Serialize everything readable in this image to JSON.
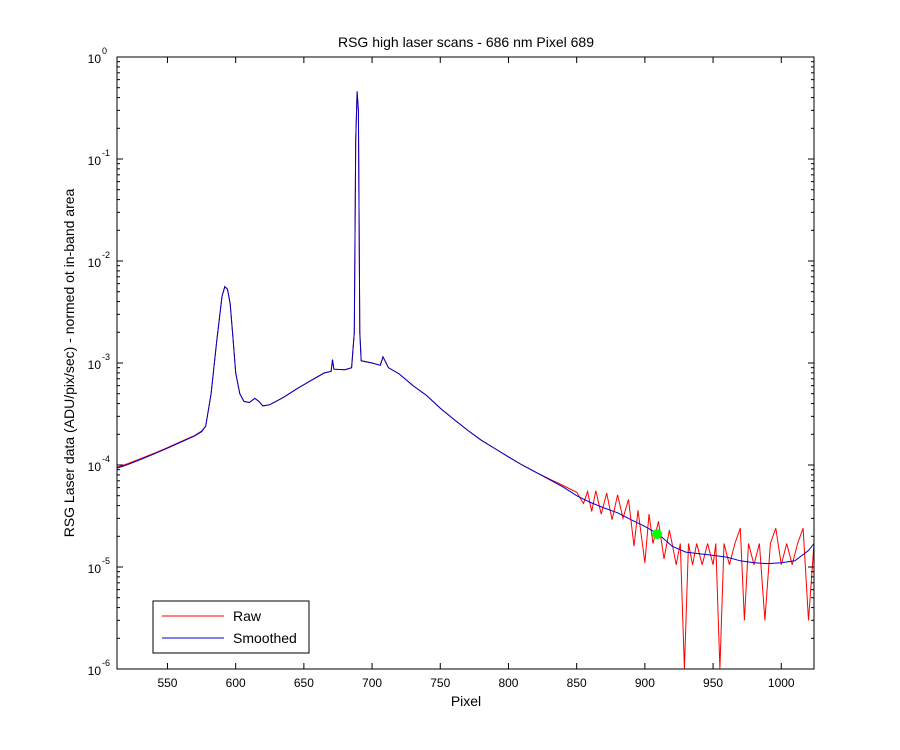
{
  "chart_data": {
    "type": "line",
    "title": "RSG high laser scans  - 686 nm    Pixel 689",
    "xlabel": "Pixel",
    "ylabel": "RSG Laser data (ADU/pix/sec) - normed ot in-band area",
    "xlim": [
      513,
      1024
    ],
    "ylim": [
      1e-06,
      1
    ],
    "yscale": "log",
    "grid": false,
    "legend_position": "bottom-left",
    "x_ticks": [
      550,
      600,
      650,
      700,
      750,
      800,
      850,
      900,
      950,
      1000
    ],
    "y_ticks": [
      {
        "value": 1e-06,
        "base": "10",
        "exp": "-6"
      },
      {
        "value": 1e-05,
        "base": "10",
        "exp": "-5"
      },
      {
        "value": 0.0001,
        "base": "10",
        "exp": "-4"
      },
      {
        "value": 0.001,
        "base": "10",
        "exp": "-3"
      },
      {
        "value": 0.01,
        "base": "10",
        "exp": "-2"
      },
      {
        "value": 0.1,
        "base": "10",
        "exp": "-1"
      },
      {
        "value": 1,
        "base": "10",
        "exp": "0"
      }
    ],
    "series": [
      {
        "name": "Raw",
        "color": "#ff0000",
        "points": [
          [
            513,
            9.5e-05
          ],
          [
            520,
            0.000102
          ],
          [
            530,
            0.000115
          ],
          [
            540,
            0.00013
          ],
          [
            550,
            0.000148
          ],
          [
            560,
            0.00017
          ],
          [
            570,
            0.000195
          ],
          [
            575,
            0.000215
          ],
          [
            578,
            0.00024
          ],
          [
            582,
            0.0005
          ],
          [
            586,
            0.0016
          ],
          [
            590,
            0.0045
          ],
          [
            592,
            0.0056
          ],
          [
            594,
            0.0053
          ],
          [
            596,
            0.0038
          ],
          [
            598,
            0.0018
          ],
          [
            600,
            0.0008
          ],
          [
            603,
            0.0005
          ],
          [
            606,
            0.00042
          ],
          [
            610,
            0.00041
          ],
          [
            614,
            0.00045
          ],
          [
            617,
            0.00042
          ],
          [
            620,
            0.00038
          ],
          [
            625,
            0.00039
          ],
          [
            635,
            0.00046
          ],
          [
            645,
            0.00056
          ],
          [
            655,
            0.00067
          ],
          [
            665,
            0.0008
          ],
          [
            670,
            0.00083
          ],
          [
            671,
            0.00108
          ],
          [
            672,
            0.00087
          ],
          [
            680,
            0.00086
          ],
          [
            685,
            0.0009
          ],
          [
            687,
            0.002
          ],
          [
            688,
            0.15
          ],
          [
            689,
            0.46
          ],
          [
            690,
            0.3
          ],
          [
            691,
            0.002
          ],
          [
            692,
            0.00105
          ],
          [
            700,
            0.001
          ],
          [
            706,
            0.00095
          ],
          [
            708,
            0.00115
          ],
          [
            712,
            0.0009
          ],
          [
            720,
            0.00078
          ],
          [
            730,
            0.0006
          ],
          [
            740,
            0.00048
          ],
          [
            750,
            0.00036
          ],
          [
            760,
            0.00028
          ],
          [
            770,
            0.00022
          ],
          [
            780,
            0.000175
          ],
          [
            790,
            0.000145
          ],
          [
            800,
            0.00012
          ],
          [
            810,
            0.0001
          ],
          [
            820,
            8.5e-05
          ],
          [
            830,
            7.3e-05
          ],
          [
            840,
            6.3e-05
          ],
          [
            850,
            5.4e-05
          ],
          [
            855,
            4.2e-05
          ],
          [
            858,
            5.5e-05
          ],
          [
            861,
            3.5e-05
          ],
          [
            864,
            5.6e-05
          ],
          [
            868,
            3.3e-05
          ],
          [
            872,
            5.3e-05
          ],
          [
            876,
            2.9e-05
          ],
          [
            880,
            5.1e-05
          ],
          [
            884,
            3e-05
          ],
          [
            888,
            4.6e-05
          ],
          [
            892,
            1.6e-05
          ],
          [
            895,
            3.6e-05
          ],
          [
            900,
            1.1e-05
          ],
          [
            903,
            3.3e-05
          ],
          [
            906,
            1.7e-05
          ],
          [
            910,
            2.8e-05
          ],
          [
            914,
            1.2e-05
          ],
          [
            918,
            2.3e-05
          ],
          [
            920,
            1.7e-05
          ],
          [
            923,
            1.05e-05
          ],
          [
            926,
            1.7e-05
          ],
          [
            929,
            1e-06
          ],
          [
            932,
            1.7e-05
          ],
          [
            935,
            1.05e-05
          ],
          [
            938,
            1.7e-05
          ],
          [
            942,
            1.05e-05
          ],
          [
            946,
            1.7e-05
          ],
          [
            950,
            1.05e-05
          ],
          [
            952,
            1.7e-05
          ],
          [
            955,
            1e-06
          ],
          [
            958,
            1.7e-05
          ],
          [
            962,
            1.05e-05
          ],
          [
            966,
            1.7e-05
          ],
          [
            970,
            2.4e-05
          ],
          [
            973,
            3e-06
          ],
          [
            976,
            1.7e-05
          ],
          [
            980,
            1.05e-05
          ],
          [
            984,
            1.7e-05
          ],
          [
            988,
            3e-06
          ],
          [
            992,
            1.7e-05
          ],
          [
            996,
            2.4e-05
          ],
          [
            1000,
            1.05e-05
          ],
          [
            1004,
            1.7e-05
          ],
          [
            1008,
            1.05e-05
          ],
          [
            1012,
            1.7e-05
          ],
          [
            1016,
            2.4e-05
          ],
          [
            1020,
            3e-06
          ],
          [
            1024,
            1.7e-05
          ]
        ]
      },
      {
        "name": "Smoothed",
        "color": "#0000cc",
        "points": [
          [
            513,
            9.3e-05
          ],
          [
            520,
            0.0001
          ],
          [
            530,
            0.000113
          ],
          [
            540,
            0.000128
          ],
          [
            550,
            0.000146
          ],
          [
            560,
            0.000168
          ],
          [
            570,
            0.000193
          ],
          [
            575,
            0.000212
          ],
          [
            578,
            0.00024
          ],
          [
            582,
            0.0005
          ],
          [
            586,
            0.0016
          ],
          [
            590,
            0.0045
          ],
          [
            592,
            0.0056
          ],
          [
            594,
            0.0053
          ],
          [
            596,
            0.0038
          ],
          [
            598,
            0.0018
          ],
          [
            600,
            0.0008
          ],
          [
            603,
            0.0005
          ],
          [
            606,
            0.00042
          ],
          [
            610,
            0.00041
          ],
          [
            614,
            0.00045
          ],
          [
            617,
            0.00042
          ],
          [
            620,
            0.00038
          ],
          [
            625,
            0.00039
          ],
          [
            635,
            0.00046
          ],
          [
            645,
            0.00056
          ],
          [
            655,
            0.00067
          ],
          [
            665,
            0.0008
          ],
          [
            670,
            0.00083
          ],
          [
            671,
            0.00108
          ],
          [
            672,
            0.00087
          ],
          [
            680,
            0.00086
          ],
          [
            685,
            0.0009
          ],
          [
            687,
            0.002
          ],
          [
            688,
            0.15
          ],
          [
            689,
            0.46
          ],
          [
            690,
            0.3
          ],
          [
            691,
            0.002
          ],
          [
            692,
            0.00105
          ],
          [
            700,
            0.001
          ],
          [
            706,
            0.00095
          ],
          [
            708,
            0.00115
          ],
          [
            712,
            0.0009
          ],
          [
            720,
            0.00078
          ],
          [
            730,
            0.0006
          ],
          [
            740,
            0.00048
          ],
          [
            750,
            0.00036
          ],
          [
            760,
            0.00028
          ],
          [
            770,
            0.00022
          ],
          [
            780,
            0.000175
          ],
          [
            790,
            0.000145
          ],
          [
            800,
            0.00012
          ],
          [
            810,
            0.0001
          ],
          [
            820,
            8.5e-05
          ],
          [
            830,
            7.2e-05
          ],
          [
            840,
            6.1e-05
          ],
          [
            850,
            5e-05
          ],
          [
            860,
            4.3e-05
          ],
          [
            870,
            3.8e-05
          ],
          [
            880,
            3.4e-05
          ],
          [
            890,
            2.9e-05
          ],
          [
            900,
            2.5e-05
          ],
          [
            910,
            2.1e-05
          ],
          [
            920,
            1.6e-05
          ],
          [
            930,
            1.4e-05
          ],
          [
            940,
            1.35e-05
          ],
          [
            950,
            1.3e-05
          ],
          [
            960,
            1.25e-05
          ],
          [
            970,
            1.15e-05
          ],
          [
            980,
            1.1e-05
          ],
          [
            990,
            1.08e-05
          ],
          [
            1000,
            1.1e-05
          ],
          [
            1010,
            1.15e-05
          ],
          [
            1020,
            1.45e-05
          ],
          [
            1024,
            1.7e-05
          ]
        ]
      }
    ],
    "markers": [
      {
        "x": 909,
        "y": 2.1e-05,
        "color": "#00ff00"
      }
    ]
  }
}
